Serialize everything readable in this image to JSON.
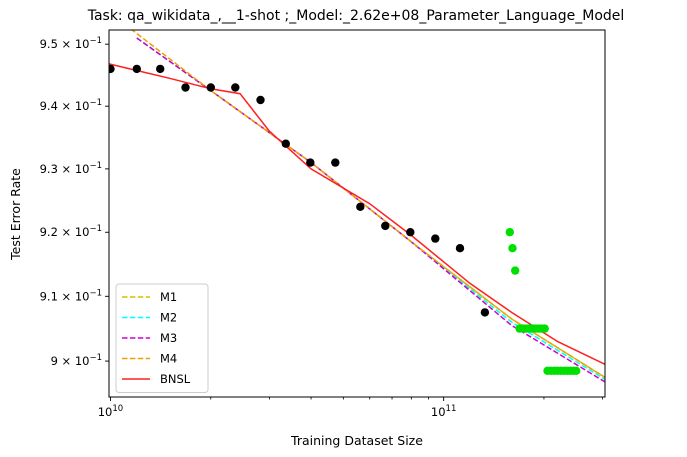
{
  "chart_data": {
    "type": "scatter",
    "title": "Task: qa_wikidata_,__1-shot ;_Model:_2.62e+08_Parameter_Language_Model",
    "xlabel": "Training Dataset Size",
    "ylabel": "Test Error Rate",
    "x_scale": "log",
    "y_scale": "log",
    "xlim": [
      9900000000.0,
      305000000000.0
    ],
    "ylim": [
      0.8945,
      0.9523
    ],
    "x_ticks": [
      {
        "value": 10000000000.0,
        "base": "10",
        "exp": "10"
      },
      {
        "value": 100000000000.0,
        "base": "10",
        "exp": "11"
      }
    ],
    "x_minor_ticks": [
      20000000000.0,
      30000000000.0,
      40000000000.0,
      50000000000.0,
      60000000000.0,
      70000000000.0,
      80000000000.0,
      90000000000.0,
      200000000000.0,
      300000000000.0
    ],
    "y_ticks": [
      {
        "value": 0.9,
        "mantissa": "9",
        "exp": "−1"
      },
      {
        "value": 0.91,
        "mantissa": "9.1",
        "exp": "−1"
      },
      {
        "value": 0.92,
        "mantissa": "9.2",
        "exp": "−1"
      },
      {
        "value": 0.93,
        "mantissa": "9.3",
        "exp": "−1"
      },
      {
        "value": 0.94,
        "mantissa": "9.4",
        "exp": "−1"
      },
      {
        "value": 0.95,
        "mantissa": "9.5",
        "exp": "−1"
      }
    ],
    "legend_position": "lower-left",
    "points": {
      "train": {
        "color": "#000000",
        "x": [
          10000000000.0,
          12000000000.0,
          14100000000.0,
          16800000000.0,
          20000000000.0,
          23700000000.0,
          28200000000.0,
          33600000000.0,
          39800000000.0,
          47300000000.0,
          56200000000.0,
          66800000000.0,
          79400000000.0,
          94400000000.0,
          112000000000.0,
          133000000000.0
        ],
        "y": [
          0.946,
          0.946,
          0.946,
          0.943,
          0.943,
          0.943,
          0.941,
          0.934,
          0.931,
          0.931,
          0.924,
          0.921,
          0.92,
          0.919,
          0.9175,
          0.9075
        ]
      },
      "test": {
        "color": "#00e000",
        "x": [
          158000000000.0,
          161000000000.0,
          164000000000.0,
          169000000000.0,
          173000000000.0,
          177000000000.0,
          181000000000.0,
          185000000000.0,
          189000000000.0,
          193000000000.0,
          197000000000.0,
          201000000000.0,
          205000000000.0,
          210000000000.0,
          215000000000.0,
          220000000000.0,
          225000000000.0,
          230000000000.0,
          235000000000.0,
          240000000000.0,
          245000000000.0,
          250000000000.0
        ],
        "y": [
          0.92,
          0.9175,
          0.914,
          0.905,
          0.905,
          0.905,
          0.905,
          0.905,
          0.905,
          0.905,
          0.905,
          0.905,
          0.8985,
          0.8985,
          0.8985,
          0.8985,
          0.8985,
          0.8985,
          0.8985,
          0.8985,
          0.8985,
          0.8985
        ]
      }
    },
    "series": [
      {
        "name": "M1",
        "color": "#d4c000",
        "dash": true,
        "x": [
          12000000000.0,
          20000000000.0,
          40000000000.0,
          80000000000.0,
          160000000000.0,
          305000000000.0
        ],
        "y": [
          0.951,
          0.9425,
          0.931,
          0.9185,
          0.9065,
          0.8975
        ]
      },
      {
        "name": "M2",
        "color": "#00ffff",
        "dash": true,
        "x": [
          12000000000.0,
          20000000000.0,
          40000000000.0,
          80000000000.0,
          160000000000.0,
          305000000000.0
        ],
        "y": [
          0.951,
          0.9425,
          0.931,
          0.9185,
          0.906,
          0.8972
        ]
      },
      {
        "name": "M3",
        "color": "#d000d0",
        "dash": true,
        "x": [
          12000000000.0,
          20000000000.0,
          40000000000.0,
          80000000000.0,
          160000000000.0,
          305000000000.0
        ],
        "y": [
          0.951,
          0.9425,
          0.931,
          0.9185,
          0.9055,
          0.8968
        ]
      },
      {
        "name": "M4",
        "color": "#f0a000",
        "dash": true,
        "x": [
          11500000000.0,
          20000000000.0,
          40000000000.0,
          80000000000.0,
          160000000000.0,
          305000000000.0
        ],
        "y": [
          0.9525,
          0.9425,
          0.931,
          0.9185,
          0.9065,
          0.8975
        ]
      },
      {
        "name": "BNSL",
        "color": "#ff2020",
        "dash": false,
        "x": [
          9900000000.0,
          15000000000.0,
          20000000000.0,
          24500000000.0,
          30000000000.0,
          40000000000.0,
          60000000000.0,
          80000000000.0,
          120000000000.0,
          160000000000.0,
          220000000000.0,
          305000000000.0
        ],
        "y": [
          0.9468,
          0.9445,
          0.9428,
          0.942,
          0.936,
          0.93,
          0.9245,
          0.9195,
          0.912,
          0.9075,
          0.903,
          0.8995
        ]
      }
    ]
  }
}
